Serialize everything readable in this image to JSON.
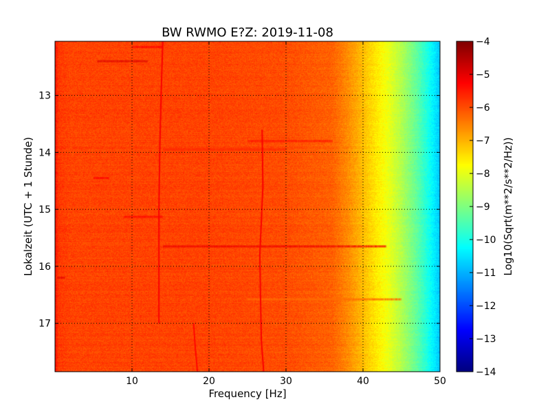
{
  "chart_data": {
    "type": "heatmap",
    "title": "BW RWMO E?Z: 2019-11-08",
    "xlabel": "Frequency [Hz]",
    "ylabel": "Lokalzeit (UTC + 1 Stunde)",
    "xlim": [
      0,
      50
    ],
    "ylim": [
      12.05,
      17.85
    ],
    "y_inverted": true,
    "x_ticks": [
      10,
      20,
      30,
      40,
      50
    ],
    "x_tick_labels": [
      "10",
      "20",
      "30",
      "40",
      "50"
    ],
    "y_ticks": [
      13,
      14,
      15,
      16,
      17
    ],
    "y_tick_labels": [
      "13",
      "14",
      "15",
      "16",
      "17"
    ],
    "grid": true,
    "colormap": "jet",
    "colorbar": {
      "label": "Log10(Sqrt(m**2/s**2/Hz))",
      "range": [
        -14,
        -4
      ],
      "ticks": [
        -4,
        -5,
        -6,
        -7,
        -8,
        -9,
        -10,
        -11,
        -12,
        -13,
        -14
      ],
      "tick_labels": [
        "−4",
        "−5",
        "−6",
        "−7",
        "−8",
        "−9",
        "−10",
        "−11",
        "−12",
        "−13",
        "−14"
      ]
    },
    "spectral_profile": {
      "frequency_hz": [
        0,
        0.5,
        2,
        10,
        20,
        30,
        36,
        38,
        40,
        42,
        43.5,
        45,
        47,
        49,
        50
      ],
      "level": [
        -5.4,
        -5.8,
        -5.9,
        -5.9,
        -5.9,
        -6.0,
        -6.2,
        -6.6,
        -7.1,
        -7.6,
        -8.0,
        -8.5,
        -9.3,
        -10.3,
        -10.8
      ]
    },
    "spectral_lines": [
      {
        "points": [
          [
            14.0,
            12.05
          ],
          [
            13.8,
            12.9
          ],
          [
            13.6,
            14.0
          ],
          [
            13.5,
            15.0
          ],
          [
            13.5,
            16.0
          ],
          [
            13.5,
            17.0
          ]
        ],
        "level": -5.2
      },
      {
        "points": [
          [
            26.9,
            13.6
          ],
          [
            27.0,
            14.6
          ],
          [
            26.8,
            15.2
          ],
          [
            26.6,
            15.8
          ],
          [
            26.7,
            16.6
          ],
          [
            26.8,
            17.3
          ],
          [
            27.1,
            17.85
          ]
        ],
        "level": -5.2
      },
      {
        "points": [
          [
            18.0,
            17.0
          ],
          [
            18.2,
            17.4
          ],
          [
            18.5,
            17.85
          ]
        ],
        "level": -5.3
      }
    ],
    "horizontal_bands": [
      {
        "time": 12.4,
        "f_from": 5.5,
        "f_to": 12.0,
        "level": -4.9
      },
      {
        "time": 12.15,
        "f_from": 10.0,
        "f_to": 14.0,
        "level": -5.3
      },
      {
        "time": 15.13,
        "f_from": 9.0,
        "f_to": 14.0,
        "level": -5.3
      },
      {
        "time": 15.65,
        "f_from": 14.0,
        "f_to": 43.0,
        "level": -5.1
      },
      {
        "time": 13.95,
        "f_from": 14.0,
        "f_to": 30.0,
        "level": -5.6
      },
      {
        "time": 16.2,
        "f_from": 0.3,
        "f_to": 1.2,
        "level": -5.0
      },
      {
        "time": 16.58,
        "f_from": 25.0,
        "f_to": 45.0,
        "level": -6.3
      },
      {
        "time": 13.8,
        "f_from": 25.0,
        "f_to": 36.0,
        "level": -5.5
      },
      {
        "time": 14.45,
        "f_from": 5.0,
        "f_to": 7.0,
        "level": -5.3
      }
    ]
  }
}
